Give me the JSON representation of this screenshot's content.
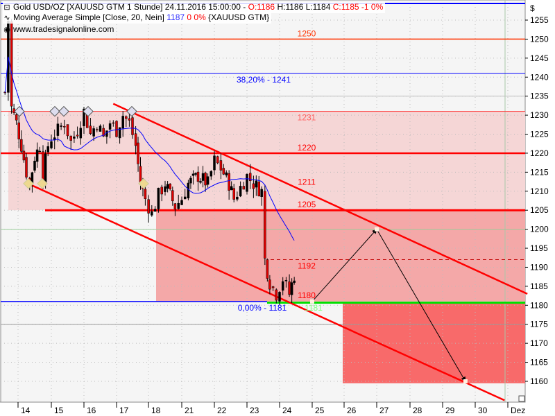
{
  "legend": {
    "instrument": "Gold USD/OZ [XAUUSD GTM  1 Stunde] 24.11.2016 15:00:00 - ",
    "open": "O:1186",
    "high": "H:1186",
    "low": "L:1184",
    "close": "C:1185 -1 0%",
    "ma_label": "Moving Average Simple [Close, 20, Nein] ",
    "ma_value": "1187",
    "ma_change": " 0 0%",
    "ma_symbol": " {XAUUSD GTM}",
    "website": "www.tradesignalonline.com",
    "icons": [
      "candle-icon",
      "moving-average-icon",
      "eye-icon"
    ]
  },
  "colors": {
    "background": "#f5f5f5",
    "resistance": "#ff0000",
    "fib": "#0000ff",
    "support_green": "#00e000",
    "zone_light": "#f5d6d6",
    "zone_mid": "#f4a8a8",
    "target_zone": "#f86a6a",
    "ma": "#0000ff"
  },
  "chart_data": {
    "type": "candlestick",
    "currency_label": "$",
    "ylim": [
      1155,
      1258
    ],
    "y_ticks": [
      1255,
      1250,
      1245,
      1240,
      1235,
      1230,
      1225,
      1220,
      1215,
      1210,
      1205,
      1200,
      1195,
      1190,
      1185,
      1180,
      1175,
      1170,
      1165,
      1160
    ],
    "x_ticks": [
      {
        "label": "14",
        "day": 14
      },
      {
        "label": "15",
        "day": 15
      },
      {
        "label": "16",
        "day": 16
      },
      {
        "label": "17",
        "day": 17
      },
      {
        "label": "18",
        "day": 18
      },
      {
        "label": "21",
        "day": 21
      },
      {
        "label": "22",
        "day": 22
      },
      {
        "label": "23",
        "day": 23
      },
      {
        "label": "24",
        "day": 24
      },
      {
        "label": "25",
        "day": 25
      },
      {
        "label": "26",
        "day": 26
      },
      {
        "label": "27",
        "day": 27
      },
      {
        "label": "28",
        "day": 28
      },
      {
        "label": "29",
        "day": 29
      },
      {
        "label": "30",
        "day": 30
      },
      {
        "label": "Dez",
        "day": 31
      }
    ],
    "price_path": [
      [
        13.6,
        1236
      ],
      [
        13.7,
        1255
      ],
      [
        13.8,
        1232
      ],
      [
        13.95,
        1228
      ],
      [
        14.1,
        1222
      ],
      [
        14.25,
        1215
      ],
      [
        14.35,
        1212
      ],
      [
        14.5,
        1219
      ],
      [
        14.65,
        1222
      ],
      [
        14.75,
        1214
      ],
      [
        14.9,
        1222
      ],
      [
        15.0,
        1224
      ],
      [
        15.2,
        1226
      ],
      [
        15.4,
        1228
      ],
      [
        15.6,
        1223
      ],
      [
        15.8,
        1226
      ],
      [
        16.0,
        1231
      ],
      [
        16.2,
        1225
      ],
      [
        16.4,
        1228
      ],
      [
        16.6,
        1224
      ],
      [
        16.8,
        1228
      ],
      [
        17.0,
        1226
      ],
      [
        17.2,
        1230
      ],
      [
        17.4,
        1228
      ],
      [
        17.6,
        1222
      ],
      [
        17.75,
        1212
      ],
      [
        17.9,
        1208
      ],
      [
        18.1,
        1204
      ],
      [
        18.3,
        1209
      ],
      [
        18.5,
        1212
      ],
      [
        18.8,
        1206
      ],
      [
        21.0,
        1208
      ],
      [
        21.2,
        1212
      ],
      [
        21.5,
        1214
      ],
      [
        21.8,
        1212
      ],
      [
        22.0,
        1218
      ],
      [
        22.2,
        1216
      ],
      [
        22.45,
        1212
      ],
      [
        22.6,
        1208
      ],
      [
        22.8,
        1211
      ],
      [
        23.0,
        1214
      ],
      [
        23.2,
        1212
      ],
      [
        23.45,
        1210
      ],
      [
        23.55,
        1192
      ],
      [
        23.7,
        1186
      ],
      [
        23.9,
        1183
      ],
      [
        24.1,
        1187
      ],
      [
        24.3,
        1183
      ],
      [
        24.45,
        1188
      ],
      [
        24.55,
        1185
      ]
    ],
    "ma_period": 20,
    "levels": [
      {
        "label": "1250",
        "price": 1250,
        "color": "#ff3300"
      },
      {
        "label": "38,20% - 1241",
        "price": 1241,
        "color": "#0000ff"
      },
      {
        "label": "1231",
        "price": 1231,
        "color": "#ff6060"
      },
      {
        "label": "1220",
        "price": 1220,
        "color": "#ff0000"
      },
      {
        "label": "1211",
        "price": 1211,
        "color": "#ff0000"
      },
      {
        "label": "1205",
        "price": 1205,
        "color": "#ff0000"
      },
      {
        "label": "1192",
        "price": 1192,
        "color": "#ff0000"
      },
      {
        "label": "0,00% - 1181",
        "price": 1181,
        "color": "#0000ff"
      },
      {
        "label": "1180",
        "price": 1180,
        "color": "#ff0000"
      },
      {
        "label": "1181",
        "price": 1181,
        "color": "#80ff80"
      }
    ],
    "channel_upper": [
      [
        16.9,
        1233
      ],
      [
        31.6,
        1183
      ]
    ],
    "channel_lower": [
      [
        14.3,
        1212
      ],
      [
        30.9,
        1155
      ]
    ],
    "projection": [
      [
        25.0,
        1181
      ],
      [
        27.0,
        1200
      ],
      [
        29.7,
        1160
      ]
    ]
  }
}
